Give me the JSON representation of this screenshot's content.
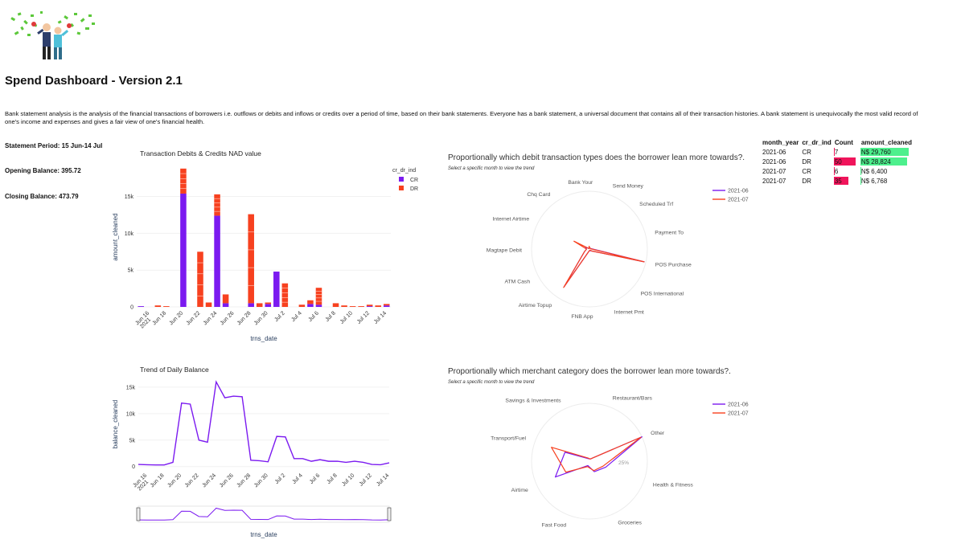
{
  "dashboard": {
    "title": "Spend Dashboard - Version 2.1",
    "description": "Bank statement analysis is the analysis of the financial transactions of borrowers i.e. outflows or debits and inflows or credits over a period of time, based on their bank statements. Everyone has a bank statement, a universal document that contains all of their transaction histories. A bank statement is unequivocally the most valid record of one's income and expenses and gives a fair view of one's financial health.",
    "logo_icon": "celebration-icon"
  },
  "stats": {
    "period": "Statement Period: 15 Jun-14 Jul",
    "opening": "Opening Balance: 395.72",
    "closing": "Closing Balance: 473.79"
  },
  "colors": {
    "cr": "#7b1af0",
    "dr": "#f7411f",
    "table_green": "#4df08d",
    "table_red": "#f0145b"
  },
  "chart_data": [
    {
      "type": "bar",
      "title": "Transaction Debits & Credits NAD value",
      "xlabel": "trns_date",
      "ylabel": "amount_cleaned",
      "ylim": [
        0,
        19000
      ],
      "legend_title": "cr_dr_ind",
      "legend_placement": "top-right",
      "tick_labels": [
        "Jun 16\n2021",
        "Jun 18",
        "Jun 20",
        "Jun 22",
        "Jun 24",
        "Jun 26",
        "Jun 28",
        "Jun 30",
        "Jul 2",
        "Jul 4",
        "Jul 6",
        "Jul 8",
        "Jul 10",
        "Jul 12",
        "Jul 14"
      ],
      "yticks": [
        "0",
        "5k",
        "10k",
        "15k"
      ],
      "categories": [
        "Jun 15",
        "Jun 16",
        "Jun 17",
        "Jun 18",
        "Jun 19",
        "Jun 20",
        "Jun 21",
        "Jun 22",
        "Jun 23",
        "Jun 24",
        "Jun 25",
        "Jun 26",
        "Jun 27",
        "Jun 28",
        "Jun 29",
        "Jun 30",
        "Jul 1",
        "Jul 2",
        "Jul 3",
        "Jul 4",
        "Jul 5",
        "Jul 6",
        "Jul 7",
        "Jul 8",
        "Jul 9",
        "Jul 10",
        "Jul 11",
        "Jul 12",
        "Jul 13",
        "Jul 14"
      ],
      "series": [
        {
          "name": "CR",
          "values": [
            100,
            0,
            0,
            0,
            0,
            15400,
            0,
            0,
            0,
            12400,
            500,
            0,
            0,
            500,
            0,
            400,
            4800,
            0,
            0,
            0,
            400,
            300,
            0,
            0,
            0,
            0,
            0,
            100,
            0,
            200
          ]
        },
        {
          "name": "DR",
          "values": [
            0,
            0,
            200,
            100,
            0,
            3400,
            0,
            7500,
            600,
            2900,
            1200,
            0,
            0,
            12100,
            500,
            200,
            0,
            3200,
            0,
            300,
            500,
            2300,
            0,
            500,
            200,
            100,
            100,
            200,
            200,
            200
          ]
        }
      ]
    },
    {
      "type": "line",
      "title": "Trend of Daily Balance",
      "xlabel": "trns_date",
      "ylabel": "balance_cleaned",
      "ylim": [
        -500,
        16500
      ],
      "tick_labels": [
        "Jun 16\n2021",
        "Jun 18",
        "Jun 20",
        "Jun 22",
        "Jun 24",
        "Jun 26",
        "Jun 28",
        "Jun 30",
        "Jul 2",
        "Jul 4",
        "Jul 6",
        "Jul 8",
        "Jul 10",
        "Jul 12",
        "Jul 14"
      ],
      "yticks": [
        "0",
        "5k",
        "10k",
        "15k"
      ],
      "x": [
        "Jun 15",
        "Jun 16",
        "Jun 17",
        "Jun 18",
        "Jun 19",
        "Jun 20",
        "Jun 21",
        "Jun 22",
        "Jun 23",
        "Jun 24",
        "Jun 25",
        "Jun 26",
        "Jun 27",
        "Jun 28",
        "Jun 29",
        "Jun 30",
        "Jul 1",
        "Jul 2",
        "Jul 3",
        "Jul 4",
        "Jul 5",
        "Jul 6",
        "Jul 7",
        "Jul 8",
        "Jul 9",
        "Jul 10",
        "Jul 11",
        "Jul 12",
        "Jul 13",
        "Jul 14"
      ],
      "y": [
        400,
        350,
        300,
        300,
        800,
        12000,
        11800,
        5000,
        4600,
        16000,
        13000,
        13300,
        13200,
        1200,
        1100,
        900,
        5700,
        5600,
        1500,
        1500,
        1000,
        1300,
        1000,
        1000,
        800,
        1000,
        800,
        400,
        350,
        700
      ]
    },
    {
      "type": "radar",
      "title": "Proportionally which debit transaction types does the borrower lean more towards?.",
      "subtitle": "Select a specific month to view the trend",
      "axes": [
        "Send Money",
        "Scheduled Trf",
        "Payment To",
        "POS Purchase",
        "POS International",
        "Internet Pmt",
        "FNB App",
        "Airtime Topup",
        "ATM Cash",
        "Magtape Debit",
        "Internet Airtime",
        "Chq Card",
        "Bank Your"
      ],
      "series": [
        {
          "name": "2021-06",
          "values": [
            0.02,
            0.02,
            0.03,
            0.97,
            0.05,
            0.03,
            0.03,
            0.78,
            0.1,
            0.05,
            0.08,
            0.01,
            0.04
          ]
        },
        {
          "name": "2021-07",
          "values": [
            0.02,
            0.02,
            0.02,
            0.97,
            0.05,
            0.02,
            0.03,
            0.8,
            0.1,
            0.05,
            0.3,
            0.01,
            0.05
          ]
        }
      ]
    },
    {
      "type": "radar",
      "title": "Proportionally which merchant category does the borrower lean more towards?.",
      "subtitle": "Select a specific month to view the trend",
      "radial_tick": "25%",
      "axes": [
        "Restaurant/Bars",
        "Other",
        "Health & Fitness",
        "Groceries",
        "Fast Food",
        "Airtime",
        "Transport/Fuel",
        "Savings & Investments"
      ],
      "series": [
        {
          "name": "2021-06",
          "values": [
            0.04,
            1.0,
            0.3,
            0.2,
            0.08,
            0.65,
            0.45,
            0.05
          ]
        },
        {
          "name": "2021-07",
          "values": [
            0.04,
            0.98,
            0.25,
            0.18,
            0.1,
            0.45,
            0.7,
            0.06
          ]
        }
      ]
    }
  ],
  "table": {
    "headers": [
      "month_year",
      "cr_dr_ind",
      "Count",
      "amount_cleaned"
    ],
    "rows": [
      {
        "month_year": "2021-06",
        "cr_dr_ind": "CR",
        "count": "7",
        "amount": "N$ 29,760",
        "count_frac": 0.06,
        "amount_frac": 1.0
      },
      {
        "month_year": "2021-06",
        "cr_dr_ind": "DR",
        "count": "50",
        "amount": "N$ 28,824",
        "count_frac": 1.0,
        "amount_frac": 0.97
      },
      {
        "month_year": "2021-07",
        "cr_dr_ind": "CR",
        "count": "6",
        "amount": "N$ 6,400",
        "count_frac": 0.0,
        "amount_frac": 0.0
      },
      {
        "month_year": "2021-07",
        "cr_dr_ind": "DR",
        "count": "35",
        "amount": "N$ 6,768",
        "count_frac": 0.66,
        "amount_frac": 0.02
      }
    ]
  }
}
